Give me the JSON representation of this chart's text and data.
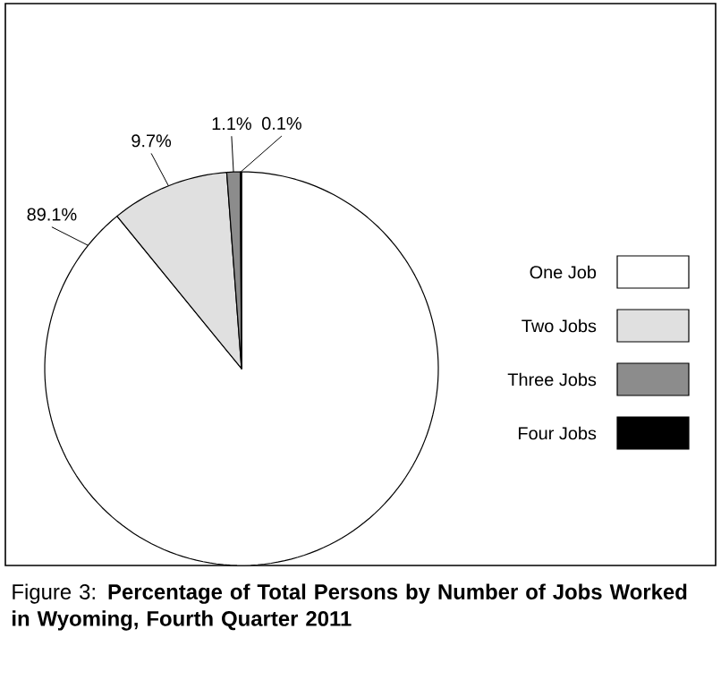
{
  "chart_data": {
    "type": "pie",
    "title": "Figure 3: **Percentage of Total Persons by Number of Jobs Worked in Wyoming, Fourth Quarter 2011**",
    "categories": [
      "One Job",
      "Two Jobs",
      "Three Jobs",
      "Four Jobs"
    ],
    "values": [
      89.1,
      9.7,
      1.1,
      0.1
    ],
    "value_labels": [
      "89.1%",
      "9.7%",
      "1.1%",
      "0.1%"
    ],
    "colors": [
      "#ffffff",
      "#e0e0e0",
      "#8c8c8c",
      "#000000"
    ],
    "legend": "right"
  }
}
